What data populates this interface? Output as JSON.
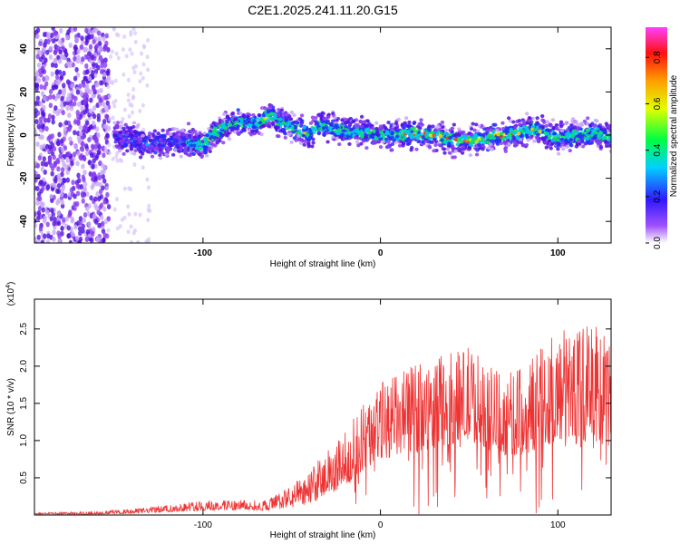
{
  "title": "C2E1.2025.241.11.20.G15",
  "chart_data": [
    {
      "type": "heatmap",
      "name": "spectrogram",
      "xlabel": "Height of straight line (km)",
      "ylabel": "Frequency (Hz)",
      "xlim": [
        -195,
        130
      ],
      "ylim": [
        -50,
        50
      ],
      "xticks": [
        -100,
        0,
        100
      ],
      "yticks": [
        -40,
        -20,
        0,
        20,
        40
      ],
      "colorbar": {
        "label": "Normalized spectral amplitude",
        "range": [
          0,
          0.93
        ],
        "ticks": [
          0.0,
          0.2,
          0.4,
          0.6,
          0.8
        ]
      },
      "ridge": {
        "description": "band centre frequency (Hz) vs height (km)",
        "x": [
          -150,
          -140,
          -130,
          -120,
          -110,
          -100,
          -95,
          -90,
          -85,
          -80,
          -70,
          -62,
          -55,
          -50,
          -45,
          -40,
          -35,
          -30,
          -20,
          -10,
          0,
          10,
          20,
          30,
          40,
          50,
          60,
          70,
          80,
          85,
          90,
          95,
          100,
          110,
          120,
          130
        ],
        "y": [
          0,
          -2,
          -5,
          -3,
          -3,
          -5,
          0,
          3,
          5,
          6,
          5,
          10,
          5,
          4,
          2,
          0,
          5,
          4,
          2,
          1,
          0,
          0,
          1,
          0,
          -2,
          -3,
          -1,
          0,
          1,
          3,
          2,
          0,
          -1,
          0,
          1,
          -1
        ]
      }
    },
    {
      "type": "line",
      "name": "snr",
      "color": "#ee3333",
      "xlabel": "Height of straight line (km)",
      "ylabel": "SNR (10 * v/v)",
      "multiplier": "(x10",
      "multiplier_exp": "4",
      "multiplier_close": ")",
      "xlim": [
        -195,
        130
      ],
      "ylim": [
        0,
        2.9
      ],
      "xticks": [
        -100,
        0,
        100
      ],
      "yticks": [
        0.5,
        1.0,
        1.5,
        2.0,
        2.5
      ],
      "envelope": {
        "description": "approximate upper envelope of the noisy SNR trace (x10^4)",
        "x": [
          -195,
          -160,
          -140,
          -120,
          -100,
          -80,
          -65,
          -50,
          -40,
          -30,
          -20,
          -15,
          -10,
          0,
          10,
          20,
          30,
          40,
          50,
          60,
          70,
          80,
          90,
          100,
          110,
          120,
          130
        ],
        "y": [
          0.03,
          0.05,
          0.08,
          0.14,
          0.2,
          0.2,
          0.2,
          0.4,
          0.6,
          0.9,
          1.1,
          1.3,
          1.5,
          1.8,
          1.9,
          2.05,
          2.1,
          2.2,
          2.3,
          2.1,
          1.9,
          2.0,
          2.3,
          2.5,
          2.6,
          2.55,
          2.4
        ]
      },
      "baseline": {
        "x": [
          -195,
          -160,
          -140,
          -120,
          -100,
          -80,
          -65,
          -50,
          -40,
          -30,
          -20,
          -15,
          -10,
          0,
          10,
          20,
          30,
          40,
          50,
          60,
          70,
          80,
          90,
          100,
          110,
          120,
          130
        ],
        "y": [
          0.01,
          0.01,
          0.02,
          0.04,
          0.06,
          0.07,
          0.06,
          0.1,
          0.15,
          0.25,
          0.4,
          0.5,
          0.6,
          0.75,
          0.8,
          0.85,
          0.9,
          0.95,
          1.0,
          0.9,
          0.8,
          0.8,
          0.9,
          1.0,
          1.05,
          0.95,
          0.9
        ]
      }
    }
  ]
}
